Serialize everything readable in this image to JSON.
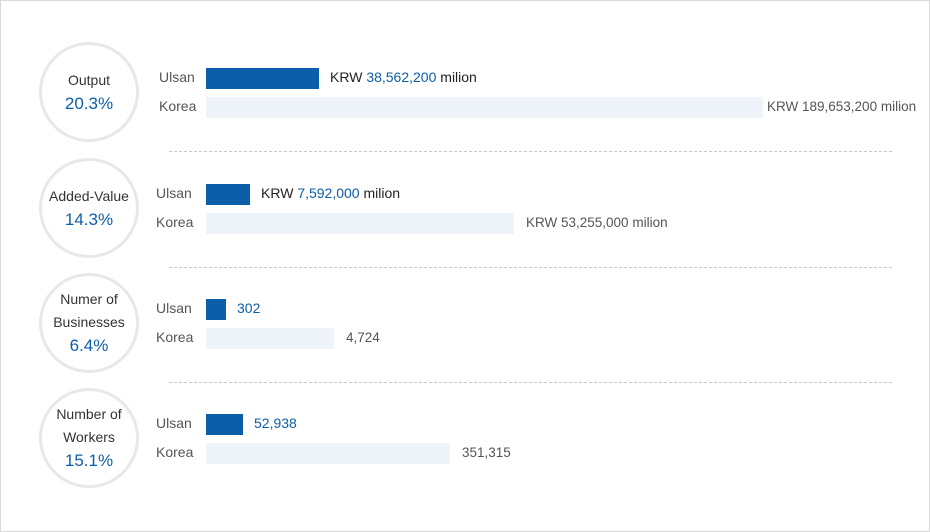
{
  "chart_data": {
    "type": "bar",
    "orientation": "horizontal",
    "row_labels": [
      "Ulsan",
      "Korea"
    ],
    "metrics": [
      {
        "label": "Output",
        "percent": "20.3%",
        "ulsan": {
          "prefix": "KRW ",
          "number": "38,562,200",
          "suffix": " milion",
          "value": 38562200
        },
        "korea": {
          "text": "KRW 189,653,200 milion",
          "value": 189653200
        }
      },
      {
        "label": "Added-Value",
        "percent": "14.3%",
        "ulsan": {
          "prefix": "KRW ",
          "number": "7,592,000",
          "suffix": " milion",
          "value": 7592000
        },
        "korea": {
          "text": "KRW 53,255,000 milion",
          "value": 53255000
        }
      },
      {
        "label": "Numer of Businesses",
        "percent": "6.4%",
        "ulsan": {
          "prefix": "",
          "number": "302",
          "suffix": "",
          "value": 302
        },
        "korea": {
          "text": "4,724",
          "value": 4724
        }
      },
      {
        "label": "Number of Workers",
        "percent": "15.1%",
        "ulsan": {
          "prefix": "",
          "number": "52,938",
          "suffix": "",
          "value": 52938
        },
        "korea": {
          "text": "351,315",
          "value": 351315
        }
      }
    ]
  },
  "colors": {
    "ulsan_bar": "#0d5ea8",
    "korea_bar": "#eef4fa",
    "accent_text": "#0d5ea8"
  }
}
